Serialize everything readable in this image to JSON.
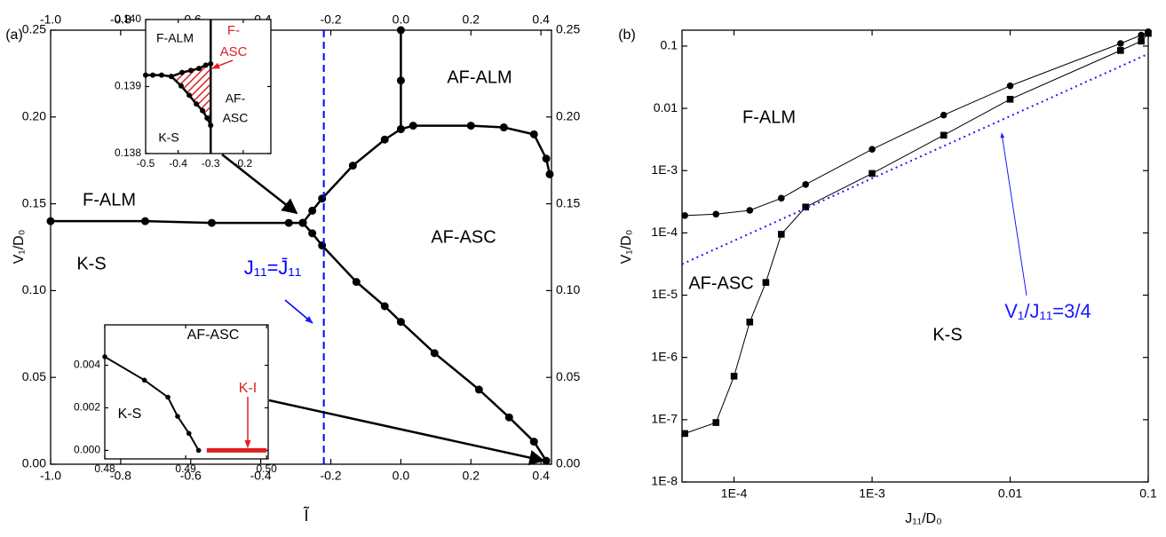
{
  "chart_data": [
    {
      "type": "line",
      "panel_label": "(a)",
      "xlabel": "Ĩ",
      "ylabel": "V₁/D₀",
      "xlim": [
        -1.0,
        0.43
      ],
      "ylim": [
        0,
        0.25
      ],
      "x2lim": [
        -1.0,
        0.43
      ],
      "y2lim": [
        0,
        0.25
      ],
      "xticks": [
        {
          "value": -1,
          "label": "-1.0"
        },
        -0.8,
        -0.6,
        -0.4,
        -0.2,
        {
          "value": 0,
          "label": "0.0"
        },
        0.2,
        0.4
      ],
      "x2ticks": [
        {
          "value": -1,
          "label": "-1.0"
        },
        -0.8,
        -0.6,
        -0.4,
        -0.2,
        {
          "value": 0,
          "label": "0.0"
        },
        0.2,
        0.4
      ],
      "yticks": [
        {
          "value": 0,
          "label": "0.00"
        },
        0.05,
        {
          "value": 0.1,
          "label": "0.10"
        },
        0.15,
        {
          "value": 0.2,
          "label": "0.20"
        },
        0.25
      ],
      "y2ticks": [
        {
          "value": 0,
          "label": "0.00"
        },
        0.05,
        {
          "value": 0.1,
          "label": "0.10"
        },
        0.15,
        {
          "value": 0.2,
          "label": "0.20"
        },
        0.25
      ],
      "series": [
        {
          "color": "#000000",
          "marker": "circle",
          "line_style": "solid",
          "x": [
            -1.0,
            -0.73,
            -0.54,
            -0.32,
            -0.28
          ],
          "values": [
            0.14,
            0.14,
            0.139,
            0.139,
            0.139
          ]
        },
        {
          "color": "#000000",
          "marker": "circle",
          "line_style": "solid",
          "x": [
            -0.28,
            -0.253,
            -0.225,
            -0.137,
            -0.046,
            0.0,
            0.035,
            0.2,
            0.294,
            0.38,
            0.415,
            0.425
          ],
          "values": [
            0.139,
            0.146,
            0.153,
            0.172,
            0.187,
            0.193,
            0.195,
            0.195,
            0.194,
            0.19,
            0.176,
            0.167
          ]
        },
        {
          "color": "#000000",
          "marker": "circle",
          "line_style": "solid",
          "x": [
            0,
            0,
            0
          ],
          "values": [
            0.25,
            0.221,
            0.193
          ]
        },
        {
          "color": "#000000",
          "marker": "circle",
          "line_style": "solid",
          "x": [
            -0.28,
            -0.253,
            -0.225,
            -0.127,
            -0.046,
            0.0,
            0.096,
            0.223,
            0.309,
            0.38,
            0.415
          ],
          "values": [
            0.139,
            0.133,
            0.126,
            0.105,
            0.091,
            0.082,
            0.064,
            0.043,
            0.027,
            0.013,
            0.002
          ]
        },
        {
          "color": "#0000ff",
          "marker": "none",
          "line_style": "dashed",
          "x": [
            -0.22,
            -0.22
          ],
          "values": [
            0,
            0.25
          ]
        }
      ],
      "annotations": [
        {
          "text": "F-ALM"
        },
        {
          "text": "K-S"
        },
        {
          "text": "AF-ALM"
        },
        {
          "text": "AF-ASC"
        },
        {
          "text": "J₁₁=J̄₁₁",
          "color": "#0000ff"
        }
      ]
    },
    {
      "type": "line",
      "xlim": [
        -0.5,
        -0.115
      ],
      "ylim": [
        0.138,
        0.14
      ],
      "xticks": [
        -0.5,
        -0.4,
        -0.3,
        -0.2
      ],
      "yticks": [
        0.138,
        0.139,
        {
          "value": 0.14,
          "label": "0.140"
        }
      ],
      "region_color": "#e02020",
      "series": [
        {
          "color": "#000000",
          "marker": "circle",
          "line_style": "solid",
          "x": [
            -0.5,
            -0.478,
            -0.451,
            -0.421,
            -0.388,
            -0.361,
            -0.336,
            -0.315,
            -0.3
          ],
          "values": [
            0.13917,
            0.13917,
            0.13917,
            0.13915,
            0.13921,
            0.13924,
            0.13927,
            0.13932,
            0.13934
          ]
        },
        {
          "color": "#000000",
          "marker": "circle",
          "line_style": "solid",
          "x": [
            -0.421,
            -0.391,
            -0.366,
            -0.344,
            -0.325,
            -0.311,
            -0.3
          ],
          "values": [
            0.13915,
            0.13901,
            0.13887,
            0.13874,
            0.13864,
            0.13853,
            0.13842
          ]
        },
        {
          "color": "#000000",
          "marker": "none",
          "line_style": "solid",
          "x": [
            -0.3,
            -0.3
          ],
          "values": [
            0.14,
            0.138
          ]
        }
      ],
      "annotations": [
        {
          "text": "F-ALM"
        },
        {
          "text": "F-",
          "color": "#e02020"
        },
        {
          "text": "ASC",
          "color": "#e02020"
        },
        {
          "text": "AF-"
        },
        {
          "text": "ASC"
        },
        {
          "text": "K-S"
        }
      ]
    },
    {
      "type": "line",
      "xlim": [
        0.48,
        0.5002
      ],
      "ylim": [
        -0.0004,
        0.0059
      ],
      "xticks": [
        0.48,
        0.49,
        {
          "value": 0.5,
          "label": "0.50"
        }
      ],
      "yticks": [
        {
          "value": 0,
          "label": "0.000"
        },
        0.002,
        0.004
      ],
      "series": [
        {
          "color": "#000000",
          "marker": "circle",
          "line_style": "solid",
          "x": [
            0.48,
            0.4849,
            0.4878,
            0.489,
            0.4904,
            0.4916
          ],
          "values": [
            0.0044,
            0.0033,
            0.0025,
            0.0016,
            0.0008,
            0
          ]
        },
        {
          "color": "#e02020",
          "marker": "none",
          "line_style": "solid",
          "line_width": 5,
          "x": [
            0.4926,
            0.5
          ],
          "values": [
            0,
            0
          ]
        }
      ],
      "annotations": [
        {
          "text": "AF-ASC"
        },
        {
          "text": "K-S"
        },
        {
          "text": "K-I",
          "color": "#e02020"
        }
      ]
    },
    {
      "type": "line",
      "panel_label": "(b)",
      "xlabel": "J₁₁/D₀",
      "ylabel": "V₁/D₀",
      "xscale": "log",
      "yscale": "log",
      "xlim": [
        4.2e-05,
        0.1
      ],
      "ylim": [
        1e-08,
        0.18
      ],
      "xticks": [
        {
          "value": 0.0001,
          "label": "1E-4"
        },
        {
          "value": 0.001,
          "label": "1E-3"
        },
        0.01,
        0.1
      ],
      "yticks": [
        {
          "value": 1e-08,
          "label": "1E-8"
        },
        {
          "value": 1e-07,
          "label": "1E-7"
        },
        {
          "value": 1e-06,
          "label": "1E-6"
        },
        {
          "value": 1e-05,
          "label": "1E-5"
        },
        {
          "value": 0.0001,
          "label": "1E-4"
        },
        {
          "value": 0.001,
          "label": "1E-3"
        },
        0.01,
        0.1
      ],
      "series": [
        {
          "color": "#000000",
          "marker": "circle",
          "line_style": "solid",
          "x": [
            4.4e-05,
            7.4e-05,
            0.00013,
            0.00022,
            0.00033,
            0.001,
            0.0033,
            0.01,
            0.063,
            0.089,
            0.1
          ],
          "values": [
            0.00019,
            0.0002,
            0.00023,
            0.00036,
            0.0006,
            0.0022,
            0.0078,
            0.023,
            0.11,
            0.15,
            0.17
          ]
        },
        {
          "color": "#000000",
          "marker": "square",
          "line_style": "solid",
          "x": [
            4.4e-05,
            7.4e-05,
            0.0001,
            0.00013,
            0.00017,
            0.00022,
            0.00033,
            0.001,
            0.0033,
            0.01,
            0.063,
            0.089,
            0.1
          ],
          "values": [
            6e-08,
            9e-08,
            5e-07,
            3.7e-06,
            1.6e-05,
            9.5e-05,
            0.00026,
            0.0009,
            0.0037,
            0.014,
            0.085,
            0.12,
            0.16
          ]
        },
        {
          "color": "#1a1aff",
          "marker": "none",
          "line_style": "dotted",
          "x": [
            4.2e-05,
            0.1
          ],
          "values": [
            3.15e-05,
            0.075
          ]
        }
      ],
      "annotations": [
        {
          "text": "F-ALM"
        },
        {
          "text": "AF-ASC"
        },
        {
          "text": "K-S"
        },
        {
          "text": "V₁/J₁₁=3/4",
          "color": "#1a1aff"
        }
      ]
    }
  ]
}
